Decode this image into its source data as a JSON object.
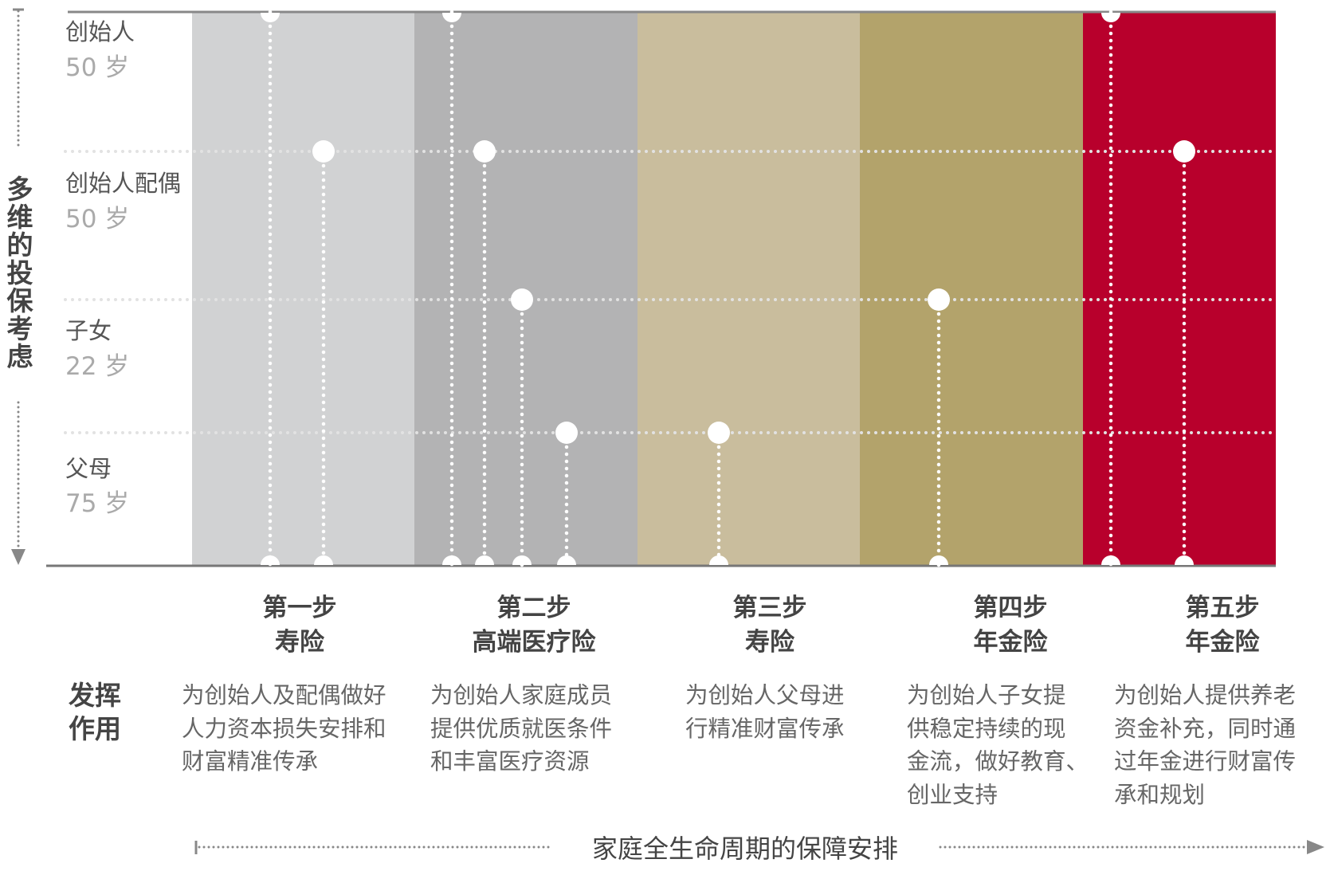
{
  "vertical_title": "多维的投保考虑",
  "rows": [
    {
      "name": "创始人",
      "age": "50 岁"
    },
    {
      "name": "创始人配偶",
      "age": "50 岁"
    },
    {
      "name": "子女",
      "age": "22 岁"
    },
    {
      "name": "父母",
      "age": "75 岁"
    }
  ],
  "effect_label": "发挥\n作用",
  "steps": [
    {
      "step": "第一步",
      "product": "寿险",
      "description": "为创始人及配偶做好\n人力资本损失安排和\n财富精准传承",
      "color": "#d1d2d3"
    },
    {
      "step": "第二步",
      "product": "高端医疗险",
      "description": "为创始人家庭成员\n提供优质就医条件\n和丰富医疗资源",
      "color": "#b3b3b4"
    },
    {
      "step": "第三步",
      "product": "寿险",
      "description": "为创始人父母进\n行精准财富传承",
      "color": "#c9bd9d"
    },
    {
      "step": "第四步",
      "product": "年金险",
      "description": "为创始人子女提\n供稳定持续的现\n金流，做好教育、\n创业支持",
      "color": "#b3a36b"
    },
    {
      "step": "第五步",
      "product": "年金险",
      "description": "为创始人提供养老\n资金补充，同时通\n过年金进行财富传\n承和规划",
      "color": "#b8002c"
    }
  ],
  "footer_label": "家庭全生命周期的保障安排",
  "colors": {
    "axis": "#888888",
    "dots": "#ffffff",
    "text": "#555555"
  }
}
